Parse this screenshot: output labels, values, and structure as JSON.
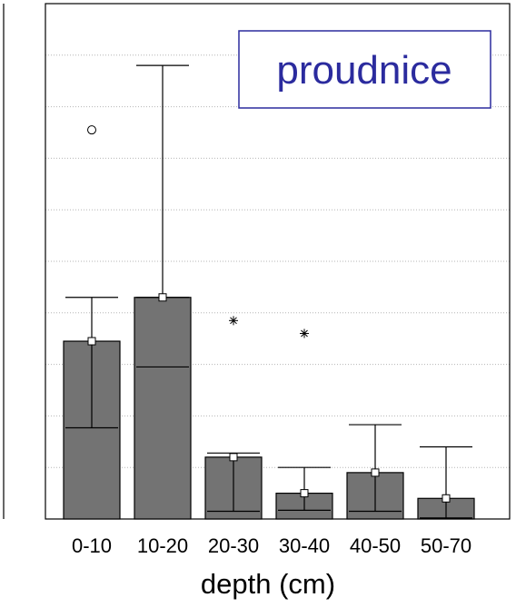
{
  "chart_data": {
    "type": "bar",
    "title": "proudnice",
    "xlabel": "depth (cm)",
    "ylabel": "",
    "ylim": [
      0,
      10
    ],
    "grid": true,
    "categories": [
      "0-10",
      "10-20",
      "20-30",
      "30-40",
      "40-50",
      "50-70"
    ],
    "values": [
      3.45,
      4.3,
      1.2,
      0.5,
      0.9,
      0.4
    ],
    "medians": [
      3.45,
      4.3,
      1.2,
      0.5,
      0.9,
      0.4
    ],
    "whisker_low": [
      1.77,
      4.3,
      0.15,
      0.17,
      0.15,
      0.0
    ],
    "whisker_high": [
      4.3,
      8.8,
      1.28,
      1.0,
      1.83,
      1.4
    ],
    "box_low": [
      1.77,
      4.3,
      0.15,
      0.17,
      0.15,
      0.02
    ],
    "box_high": [
      3.45,
      2.78,
      1.2,
      0.5,
      0.9,
      0.4
    ],
    "lower_caps": [
      1.77,
      4.3,
      0.15,
      0.17,
      0.15,
      0.02
    ],
    "upper_caps": [
      4.3,
      8.8,
      1.28,
      1.0,
      1.83,
      1.4
    ],
    "inner_caps": [
      null,
      4.3,
      null,
      null,
      null,
      null
    ],
    "inner_caps_low": [
      null,
      2.95,
      null,
      null,
      null,
      null
    ],
    "outliers": [
      {
        "category": "0-10",
        "value": 7.55,
        "marker": "circle"
      },
      {
        "category": "20-30",
        "value": 3.85,
        "marker": "asterisk"
      },
      {
        "category": "30-40",
        "value": 3.6,
        "marker": "asterisk"
      }
    ],
    "colors": {
      "bar_fill": "#737373",
      "bar_stroke": "#000000",
      "title_color": "#2b2b9e",
      "grid": "#b5b5b5"
    }
  }
}
